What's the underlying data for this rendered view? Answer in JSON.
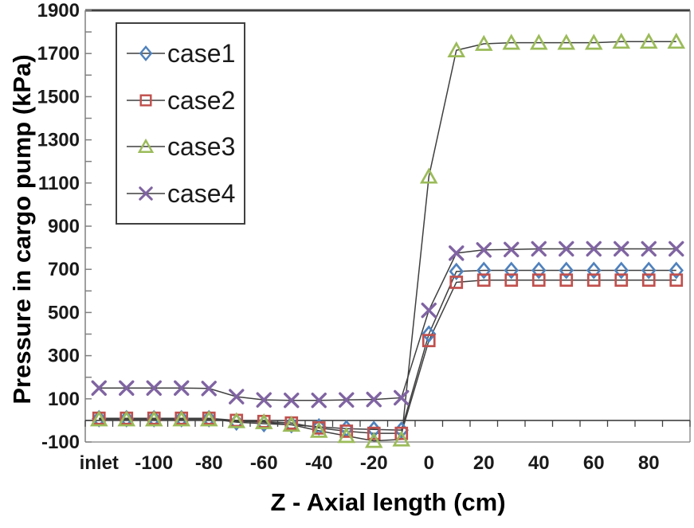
{
  "chart_data": {
    "type": "line",
    "title": "",
    "xlabel": "Z - Axial length (cm)",
    "ylabel": "Pressure in cargo pump (kPa)",
    "ylim": [
      -100,
      1900
    ],
    "yticks_labeled": [
      -100,
      100,
      300,
      500,
      700,
      900,
      1100,
      1300,
      1500,
      1700,
      1900
    ],
    "ytick_minor_step": 100,
    "grid": false,
    "legend_position": "top-left-inside",
    "x_tick_labels": [
      "inlet",
      "-100",
      "-80",
      "-60",
      "-40",
      "-20",
      "0",
      "20",
      "40",
      "60",
      "80"
    ],
    "x_categories": [
      "inlet",
      "-110",
      "-100",
      "-90",
      "-80",
      "-70",
      "-60",
      "-50",
      "-40",
      "-30",
      "-20",
      "-10",
      "0",
      "10",
      "20",
      "30",
      "40",
      "50",
      "60",
      "70",
      "80",
      "90"
    ],
    "axis_line_color": "#808080",
    "zero_axis_color": "#404040",
    "series_line_color": "#3f3f3f",
    "series": [
      {
        "name": "case1",
        "marker": "diamond",
        "color": "#4F81BD",
        "values": [
          8,
          8,
          8,
          8,
          8,
          -8,
          -15,
          -20,
          -30,
          -38,
          -42,
          -45,
          400,
          690,
          695,
          695,
          695,
          695,
          695,
          695,
          695,
          695
        ]
      },
      {
        "name": "case2",
        "marker": "square",
        "color": "#C0504D",
        "values": [
          10,
          10,
          10,
          10,
          10,
          0,
          -5,
          -12,
          -35,
          -50,
          -60,
          -60,
          370,
          640,
          650,
          650,
          650,
          650,
          650,
          650,
          650,
          650
        ]
      },
      {
        "name": "case3",
        "marker": "triangle",
        "color": "#9BBB59",
        "values": [
          5,
          5,
          5,
          5,
          5,
          -3,
          -8,
          -20,
          -48,
          -72,
          -95,
          -88,
          1130,
          1715,
          1745,
          1750,
          1750,
          1750,
          1750,
          1755,
          1755,
          1755
        ]
      },
      {
        "name": "case4",
        "marker": "x",
        "color": "#8064A2",
        "values": [
          150,
          150,
          150,
          150,
          148,
          110,
          95,
          93,
          93,
          95,
          97,
          105,
          510,
          775,
          790,
          792,
          795,
          795,
          795,
          795,
          795,
          795
        ]
      }
    ]
  }
}
